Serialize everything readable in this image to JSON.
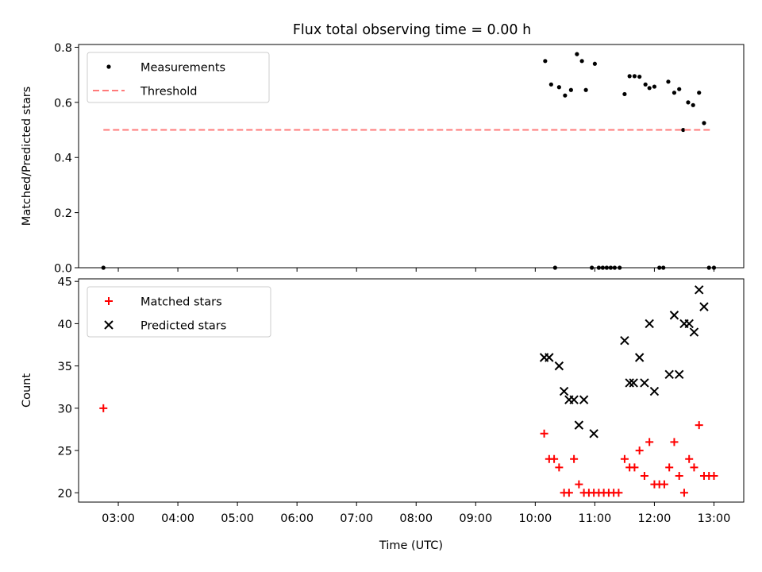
{
  "title": "Flux total observing time = 0.00 h",
  "chart_data": [
    {
      "type": "scatter",
      "ylabel": "Matched/Predicted stars",
      "xlim": [
        "02:20",
        "13:30"
      ],
      "ylim": [
        0,
        0.81
      ],
      "yticks": [
        0.0,
        0.2,
        0.4,
        0.6,
        0.8
      ],
      "ytick_labels": [
        "0.0",
        "0.2",
        "0.4",
        "0.6",
        "0.8"
      ],
      "legend_position": "top-left",
      "series": [
        {
          "name": "Measurements",
          "marker": "dot",
          "color": "#000000",
          "points": [
            [
              "02:45",
              0.0
            ],
            [
              "10:10",
              0.75
            ],
            [
              "10:16",
              0.665
            ],
            [
              "10:20",
              0.0
            ],
            [
              "10:24",
              0.655
            ],
            [
              "10:30",
              0.625
            ],
            [
              "10:36",
              0.645
            ],
            [
              "10:42",
              0.775
            ],
            [
              "10:47",
              0.75
            ],
            [
              "10:51",
              0.645
            ],
            [
              "10:57",
              0.0
            ],
            [
              "11:00",
              0.74
            ],
            [
              "11:04",
              0.0
            ],
            [
              "11:08",
              0.0
            ],
            [
              "11:12",
              0.0
            ],
            [
              "11:16",
              0.0
            ],
            [
              "11:20",
              0.0
            ],
            [
              "11:25",
              0.0
            ],
            [
              "11:30",
              0.63
            ],
            [
              "11:35",
              0.695
            ],
            [
              "11:40",
              0.695
            ],
            [
              "11:45",
              0.693
            ],
            [
              "11:51",
              0.665
            ],
            [
              "11:55",
              0.652
            ],
            [
              "12:00",
              0.657
            ],
            [
              "12:05",
              0.0
            ],
            [
              "12:09",
              0.0
            ],
            [
              "12:14",
              0.675
            ],
            [
              "12:20",
              0.635
            ],
            [
              "12:25",
              0.648
            ],
            [
              "12:29",
              0.5
            ],
            [
              "12:34",
              0.6
            ],
            [
              "12:39",
              0.59
            ],
            [
              "12:45",
              0.635
            ],
            [
              "12:50",
              0.525
            ],
            [
              "12:55",
              0.0
            ],
            [
              "13:00",
              0.0
            ]
          ]
        },
        {
          "name": "Threshold",
          "line_style": "dashed",
          "color": "#ff7a7a",
          "points": [
            [
              "02:45",
              0.5
            ],
            [
              "12:59",
              0.5
            ]
          ]
        }
      ]
    },
    {
      "type": "scatter",
      "xlabel": "Time (UTC)",
      "ylabel": "Count",
      "xlim": [
        "02:20",
        "13:30"
      ],
      "ylim": [
        18.9,
        45.3
      ],
      "yticks": [
        20,
        25,
        30,
        35,
        40,
        45
      ],
      "ytick_labels": [
        "20",
        "25",
        "30",
        "35",
        "40",
        "45"
      ],
      "xticks": [
        "03:00",
        "04:00",
        "05:00",
        "06:00",
        "07:00",
        "08:00",
        "09:00",
        "10:00",
        "11:00",
        "12:00",
        "13:00"
      ],
      "xtick_labels": [
        "03:00",
        "04:00",
        "05:00",
        "06:00",
        "07:00",
        "08:00",
        "09:00",
        "10:00",
        "11:00",
        "12:00",
        "13:00"
      ],
      "legend_position": "top-left",
      "series": [
        {
          "name": "Matched stars",
          "marker": "plus",
          "color": "#ff0000",
          "points": [
            [
              "02:45",
              30
            ],
            [
              "10:09",
              27
            ],
            [
              "10:14",
              24
            ],
            [
              "10:19",
              24
            ],
            [
              "10:24",
              23
            ],
            [
              "10:29",
              20
            ],
            [
              "10:34",
              20
            ],
            [
              "10:39",
              24
            ],
            [
              "10:44",
              21
            ],
            [
              "10:49",
              20
            ],
            [
              "10:54",
              20
            ],
            [
              "10:59",
              20
            ],
            [
              "11:04",
              20
            ],
            [
              "11:09",
              20
            ],
            [
              "11:14",
              20
            ],
            [
              "11:19",
              20
            ],
            [
              "11:24",
              20
            ],
            [
              "11:30",
              24
            ],
            [
              "11:35",
              23
            ],
            [
              "11:40",
              23
            ],
            [
              "11:45",
              25
            ],
            [
              "11:50",
              22
            ],
            [
              "11:55",
              26
            ],
            [
              "12:00",
              21
            ],
            [
              "12:05",
              21
            ],
            [
              "12:10",
              21
            ],
            [
              "12:15",
              23
            ],
            [
              "12:20",
              26
            ],
            [
              "12:25",
              22
            ],
            [
              "12:30",
              20
            ],
            [
              "12:35",
              24
            ],
            [
              "12:40",
              23
            ],
            [
              "12:45",
              28
            ],
            [
              "12:50",
              22
            ],
            [
              "12:55",
              22
            ],
            [
              "13:00",
              22
            ]
          ]
        },
        {
          "name": "Predicted stars",
          "marker": "x",
          "color": "#000000",
          "points": [
            [
              "10:09",
              36
            ],
            [
              "10:14",
              36
            ],
            [
              "10:24",
              35
            ],
            [
              "10:29",
              32
            ],
            [
              "10:34",
              31
            ],
            [
              "10:39",
              31
            ],
            [
              "10:44",
              28
            ],
            [
              "10:49",
              31
            ],
            [
              "10:59",
              27
            ],
            [
              "11:30",
              38
            ],
            [
              "11:35",
              33
            ],
            [
              "11:39",
              33
            ],
            [
              "11:45",
              36
            ],
            [
              "11:50",
              33
            ],
            [
              "11:55",
              40
            ],
            [
              "12:00",
              32
            ],
            [
              "12:15",
              34
            ],
            [
              "12:20",
              41
            ],
            [
              "12:25",
              34
            ],
            [
              "12:30",
              40
            ],
            [
              "12:35",
              40
            ],
            [
              "12:40",
              39
            ],
            [
              "12:45",
              44
            ],
            [
              "12:50",
              42
            ]
          ]
        }
      ]
    }
  ]
}
